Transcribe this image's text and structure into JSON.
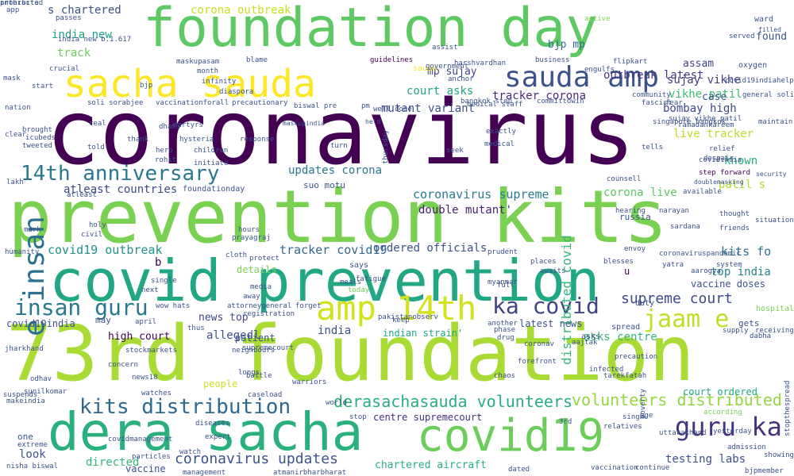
{
  "palette": [
    "#440154",
    "#3b528b",
    "#21918c",
    "#5ec962",
    "#addc30",
    "#fde725"
  ],
  "words": [
    {
      "text": "coronavirus",
      "c": "#440154"
    },
    {
      "text": "prevention kits",
      "c": "#7ad151"
    },
    {
      "text": "73rd foundation",
      "c": "#a8db34"
    },
    {
      "text": "foundation day",
      "c": "#5ec962"
    },
    {
      "text": "covid prevention",
      "c": "#22a785"
    },
    {
      "text": "dera sacha",
      "c": "#2ab07f"
    },
    {
      "text": "covid19",
      "c": "#6ccd5a"
    },
    {
      "text": "sacha sauda",
      "c": "#fde725"
    },
    {
      "text": "sauda amp",
      "c": "#3b528b"
    },
    {
      "text": "amp 14th",
      "c": "#d2e21b"
    },
    {
      "text": "e insan",
      "c": "#2c728e"
    },
    {
      "text": "insan guru",
      "c": "#2a788e"
    },
    {
      "text": "guru ka",
      "c": "#46327e"
    },
    {
      "text": "jaam e",
      "c": "#bddf26"
    },
    {
      "text": "ka covid",
      "c": "#414487"
    },
    {
      "text": "kits distribution",
      "c": "#31688e"
    },
    {
      "text": "14th anniversary",
      "c": "#2a788e"
    },
    {
      "text": "derasachasauda volunteers",
      "c": "#29af7f"
    },
    {
      "text": "volunteers distributed",
      "c": "#93d741"
    },
    {
      "text": "supreme court",
      "c": "#3e4a89"
    },
    {
      "text": "coronavirus updates",
      "c": "#3b528b"
    },
    {
      "text": "coronavirus supreme",
      "c": "#287c8e"
    },
    {
      "text": "tracker corona",
      "c": "#482878"
    },
    {
      "text": "outbreak latest",
      "c": "#443983"
    },
    {
      "text": "corona live",
      "c": "#5ec962"
    },
    {
      "text": "live tracker",
      "c": "#b5de2b"
    },
    {
      "text": "bombay high",
      "c": "#3f4788"
    },
    {
      "text": "sujay vikhe",
      "c": "#433e85"
    },
    {
      "text": "vikhe patil",
      "c": "#3cbb75"
    },
    {
      "text": "bjp mp",
      "c": "#2d708e"
    },
    {
      "text": "mp sujay",
      "c": "#404688"
    },
    {
      "text": "mutant variant",
      "c": "#3b528b"
    },
    {
      "text": "court asks",
      "c": "#20a386"
    },
    {
      "text": "kits fo",
      "c": "#2c728e"
    },
    {
      "text": "top india",
      "c": "#25858e"
    },
    {
      "text": "vaccine doses",
      "c": "#3b528b"
    },
    {
      "text": "covid19 outbreak",
      "c": "#21918c"
    },
    {
      "text": "tracker covid19",
      "c": "#31688e"
    },
    {
      "text": "ordered officials",
      "c": "#3b528b"
    },
    {
      "text": "updates corona",
      "c": "#2a788e"
    },
    {
      "text": "atleast countries",
      "c": "#3e4989"
    },
    {
      "text": "double mutant'",
      "c": "#481f70"
    },
    {
      "text": "distributed covid",
      "c": "#35b779"
    },
    {
      "text": "known",
      "c": "#29af7f"
    },
    {
      "text": "patil s",
      "c": "#addc30"
    },
    {
      "text": "corona outbreak",
      "c": "#c8e020"
    },
    {
      "text": "s chartered",
      "c": "#3b528b"
    },
    {
      "text": "india new",
      "c": "#1fa088"
    },
    {
      "text": "track",
      "c": "#6ccd5a"
    },
    {
      "text": "assam",
      "c": "#414487"
    },
    {
      "text": "found",
      "c": "#3b528b"
    },
    {
      "text": "case",
      "c": "#3b528b"
    },
    {
      "text": "high court",
      "c": "#440154"
    },
    {
      "text": "news top",
      "c": "#404688"
    },
    {
      "text": "indian strain'",
      "c": "#22a785"
    },
    {
      "text": "latest news",
      "c": "#3b528b"
    },
    {
      "text": "asks centre",
      "c": "#35b779"
    },
    {
      "text": "centre supremecourt",
      "c": "#472f7d"
    },
    {
      "text": "court ordered",
      "c": "#22a785"
    },
    {
      "text": "testing labs",
      "c": "#3b528b"
    },
    {
      "text": "directed",
      "c": "#35b779"
    },
    {
      "text": "chartered aircraft",
      "c": "#29af7f"
    },
    {
      "text": "look",
      "c": "#3b528b"
    },
    {
      "text": "allegedl",
      "c": "#3b528b"
    },
    {
      "text": "covid19india",
      "c": "#3b528b"
    },
    {
      "text": "details",
      "c": "#7ad151"
    },
    {
      "text": "patient",
      "c": "#3b528b"
    },
    {
      "text": "people",
      "c": "#cde11d"
    },
    {
      "text": "vaccine",
      "c": "#3b528b"
    },
    {
      "text": "india",
      "c": "#3b528b"
    },
    {
      "text": "guidelines",
      "c": "#440154"
    },
    {
      "text": "medical staff",
      "c": "#3b528b"
    },
    {
      "text": "hospital",
      "c": "#7ad151"
    },
    {
      "text": "russia",
      "c": "#3b528b"
    },
    {
      "text": "step forward",
      "c": "#440154"
    },
    {
      "text": "covidindia",
      "c": "#3b528b"
    },
    {
      "text": "duty",
      "c": "#3b528b"
    },
    {
      "text": "gets",
      "c": "#3b528b"
    },
    {
      "text": "spread",
      "c": "#3b528b"
    },
    {
      "text": "b",
      "c": "#440154"
    },
    {
      "text": "u",
      "c": "#440154"
    },
    {
      "text": "may",
      "c": "#3b528b"
    },
    {
      "text": "one",
      "c": "#3b528b"
    },
    {
      "text": "envoy",
      "c": "#3b528b"
    },
    {
      "text": "today",
      "c": "#7ad151"
    },
    {
      "text": "says",
      "c": "#3b528b"
    },
    {
      "text": "away",
      "c": "#3b528b"
    },
    {
      "text": "asks",
      "c": "#3b528b"
    },
    {
      "text": "suo motu",
      "c": "#3b528b"
    },
    {
      "text": "hearing",
      "c": "#3b528b"
    },
    {
      "text": "according",
      "c": "#7ad151"
    },
    {
      "text": "foundationday",
      "c": "#3b528b"
    },
    {
      "text": "nisha biswal",
      "c": "#3b528b"
    },
    {
      "text": "extreme",
      "c": "#3b528b"
    },
    {
      "text": "vaccination",
      "c": "#3b528b"
    },
    {
      "text": "active",
      "c": "#7ad151"
    },
    {
      "text": "ward",
      "c": "#3b528b"
    },
    {
      "text": "passes",
      "c": "#3b528b"
    },
    {
      "text": "sauda",
      "c": "#fde725"
    },
    {
      "text": "sujay vikhe patil",
      "c": "#3b528b"
    },
    {
      "text": "singapore bangkok",
      "c": "#3b528b"
    },
    {
      "text": "india new b.1.617",
      "c": "#3b528b"
    },
    {
      "text": "atleast",
      "c": "#3b528b"
    },
    {
      "text": "mask",
      "c": "#3b528b"
    },
    {
      "text": "start",
      "c": "#3b528b"
    },
    {
      "text": "app",
      "c": "#3b528b"
    },
    {
      "text": "clear",
      "c": "#3b528b"
    },
    {
      "text": "fatigue",
      "c": "#3b528b"
    },
    {
      "text": "supremecourt",
      "c": "#3b528b"
    },
    {
      "text": "next",
      "c": "#3b528b"
    },
    {
      "text": "bjp",
      "c": "#3b528b"
    },
    {
      "text": "pm",
      "c": "#3b528b"
    },
    {
      "text": "lakh",
      "c": "#3b528b"
    },
    {
      "text": "dhami",
      "c": "#3b528b"
    },
    {
      "text": "biswal pre",
      "c": "#3b528b"
    },
    {
      "text": "bangkok step",
      "c": "#3b528b"
    },
    {
      "text": "community",
      "c": "#3b528b"
    },
    {
      "text": "government",
      "c": "#3b528b"
    },
    {
      "text": "anchor",
      "c": "#3b528b"
    },
    {
      "text": "assist",
      "c": "#3b528b"
    },
    {
      "text": "held",
      "c": "#3b528b"
    },
    {
      "text": "well done",
      "c": "#3b528b"
    },
    {
      "text": "nation",
      "c": "#3b528b"
    },
    {
      "text": "fascist",
      "c": "#3b528b"
    },
    {
      "text": "fear",
      "c": "#3b528b"
    },
    {
      "text": "oxygen",
      "c": "#3b528b"
    },
    {
      "text": "filled",
      "c": "#3b528b"
    },
    {
      "text": "served",
      "c": "#3b528b"
    },
    {
      "text": "general soli",
      "c": "#3b528b"
    },
    {
      "text": "maintain",
      "c": "#3b528b"
    },
    {
      "text": "covid19indiahelp",
      "c": "#3b528b"
    },
    {
      "text": "harshvardhan",
      "c": "#3b528b"
    },
    {
      "text": "business",
      "c": "#3b528b"
    },
    {
      "text": "engulfs",
      "c": "#3b528b"
    },
    {
      "text": "flipkart",
      "c": "#3b528b"
    },
    {
      "text": "committowin",
      "c": "#3b528b"
    },
    {
      "text": "crucial",
      "c": "#3b528b"
    },
    {
      "text": "maskupasam",
      "c": "#3b528b"
    },
    {
      "text": "blame",
      "c": "#3b528b"
    },
    {
      "text": "month",
      "c": "#3b528b"
    },
    {
      "text": "infinity",
      "c": "#3b528b"
    },
    {
      "text": "diaspora",
      "c": "#3b528b"
    },
    {
      "text": "soli sorabjee",
      "c": "#3b528b"
    },
    {
      "text": "vaccinationforall",
      "c": "#3b528b"
    },
    {
      "text": "precautionary",
      "c": "#3b528b"
    },
    {
      "text": "brought",
      "c": "#3b528b"
    },
    {
      "text": "icubeds",
      "c": "#3b528b"
    },
    {
      "text": "tweeted",
      "c": "#3b528b"
    },
    {
      "text": "told",
      "c": "#3b528b"
    },
    {
      "text": "real",
      "c": "#3b528b"
    },
    {
      "text": "martyrs",
      "c": "#3b528b"
    },
    {
      "text": "hysteria",
      "c": "#3b528b"
    },
    {
      "text": "thank",
      "c": "#3b528b"
    },
    {
      "text": "children",
      "c": "#3b528b"
    },
    {
      "text": "initiate",
      "c": "#3b528b"
    },
    {
      "text": "hero",
      "c": "#3b528b"
    },
    {
      "text": "rohit",
      "c": "#3b528b"
    },
    {
      "text": "maskupindia",
      "c": "#3b528b"
    },
    {
      "text": "response",
      "c": "#3b528b"
    },
    {
      "text": "turn",
      "c": "#3b528b"
    },
    {
      "text": "thursday",
      "c": "#3b528b"
    },
    {
      "text": "seek",
      "c": "#3b528b"
    },
    {
      "text": "medical",
      "c": "#3b528b"
    },
    {
      "text": "exactly",
      "c": "#3b528b"
    },
    {
      "text": "counsell",
      "c": "#3b528b"
    },
    {
      "text": "security",
      "c": "#3b528b"
    },
    {
      "text": "doublemasking",
      "c": "#3b528b"
    },
    {
      "text": "despair",
      "c": "#3b528b"
    },
    {
      "text": "relief",
      "c": "#3b528b"
    },
    {
      "text": "ramadankareem",
      "c": "#3b528b"
    },
    {
      "text": "tells",
      "c": "#3b528b"
    },
    {
      "text": "thought",
      "c": "#3b528b"
    },
    {
      "text": "friends",
      "c": "#3b528b"
    },
    {
      "text": "situation",
      "c": "#3b528b"
    },
    {
      "text": "available",
      "c": "#3b528b"
    },
    {
      "text": "sardana",
      "c": "#3b528b"
    },
    {
      "text": "narayan",
      "c": "#3b528b"
    },
    {
      "text": "coronaviruspandemic",
      "c": "#3b528b"
    },
    {
      "text": "yatra",
      "c": "#3b528b"
    },
    {
      "text": "aarogya",
      "c": "#3b528b"
    },
    {
      "text": "system",
      "c": "#3b528b"
    },
    {
      "text": "hours",
      "c": "#3b528b"
    },
    {
      "text": "prayagraj",
      "c": "#3b528b"
    },
    {
      "text": "protect",
      "c": "#3b528b"
    },
    {
      "text": "cloth",
      "c": "#3b528b"
    },
    {
      "text": "media",
      "c": "#3b528b"
    },
    {
      "text": "meals",
      "c": "#3b528b"
    },
    {
      "text": "myanmar",
      "c": "#3b528b"
    },
    {
      "text": "full",
      "c": "#3b528b"
    },
    {
      "text": "prudent",
      "c": "#3b528b"
    },
    {
      "text": "places",
      "c": "#3b528b"
    },
    {
      "text": "awaits",
      "c": "#3b528b"
    },
    {
      "text": "blesses",
      "c": "#3b528b"
    },
    {
      "text": "humanity",
      "c": "#3b528b"
    },
    {
      "text": "holy",
      "c": "#3b528b"
    },
    {
      "text": "civil",
      "c": "#3b528b"
    },
    {
      "text": "mark",
      "c": "#3b528b"
    },
    {
      "text": "single",
      "c": "#3b528b"
    },
    {
      "text": "wow hats",
      "c": "#3b528b"
    },
    {
      "text": "attorneygeneral",
      "c": "#3b528b"
    },
    {
      "text": "registration",
      "c": "#3b528b"
    },
    {
      "text": "thus",
      "c": "#3b528b"
    },
    {
      "text": "neighbours",
      "c": "#3b528b"
    },
    {
      "text": "april",
      "c": "#3b528b"
    },
    {
      "text": "forget",
      "c": "#3b528b"
    },
    {
      "text": "pakistanobserv",
      "c": "#3b528b"
    },
    {
      "text": "keep",
      "c": "#3b528b"
    },
    {
      "text": "another",
      "c": "#3b528b"
    },
    {
      "text": "drug",
      "c": "#3b528b"
    },
    {
      "text": "phase",
      "c": "#3b528b"
    },
    {
      "text": "aajtak",
      "c": "#3b528b"
    },
    {
      "text": "coronav",
      "c": "#3b528b"
    },
    {
      "text": "precaution",
      "c": "#3b528b"
    },
    {
      "text": "infected",
      "c": "#3b528b"
    },
    {
      "text": "tarekfatah",
      "c": "#3b528b"
    },
    {
      "text": "poverty",
      "c": "#3b528b"
    },
    {
      "text": "forefront",
      "c": "#3b528b"
    },
    {
      "text": "chaos",
      "c": "#3b528b"
    },
    {
      "text": "odhav",
      "c": "#3b528b"
    },
    {
      "text": "sunilkomar",
      "c": "#3b528b"
    },
    {
      "text": "makeindia",
      "c": "#3b528b"
    },
    {
      "text": "caseload",
      "c": "#3b528b"
    },
    {
      "text": "battle",
      "c": "#3b528b"
    },
    {
      "text": "warriors",
      "c": "#3b528b"
    },
    {
      "text": "world",
      "c": "#3b528b"
    },
    {
      "text": "stop",
      "c": "#3b528b"
    },
    {
      "text": "3rd",
      "c": "#3b528b"
    },
    {
      "text": "singh",
      "c": "#3b528b"
    },
    {
      "text": "age",
      "c": "#3b528b"
    },
    {
      "text": "relatives",
      "c": "#3b528b"
    },
    {
      "text": "uttarakhand",
      "c": "#3b528b"
    },
    {
      "text": "yesterday",
      "c": "#3b528b"
    },
    {
      "text": "admission",
      "c": "#3b528b"
    },
    {
      "text": "dated",
      "c": "#3b528b"
    },
    {
      "text": "bjpmember",
      "c": "#3b528b"
    },
    {
      "text": "management",
      "c": "#3b528b"
    },
    {
      "text": "atmanirbharbharat",
      "c": "#3b528b"
    },
    {
      "text": "diseases",
      "c": "#3b528b"
    },
    {
      "text": "expert",
      "c": "#3b528b"
    },
    {
      "text": "watch",
      "c": "#3b528b"
    },
    {
      "text": "covidmanagement",
      "c": "#3b528b"
    },
    {
      "text": "particles",
      "c": "#3b528b"
    },
    {
      "text": "watches",
      "c": "#3b528b"
    },
    {
      "text": "longs",
      "c": "#3b528b"
    },
    {
      "text": "concern",
      "c": "#3b528b"
    },
    {
      "text": "stockmarkets",
      "c": "#3b528b"
    },
    {
      "text": "news18",
      "c": "#3b528b"
    },
    {
      "text": "jharkhand",
      "c": "#3b528b"
    },
    {
      "text": "suspends",
      "c": "#3b528b"
    },
    {
      "text": "continue",
      "c": "#3b528b"
    },
    {
      "text": "showing",
      "c": "#3b528b"
    },
    {
      "text": "receiving",
      "c": "#3b528b"
    },
    {
      "text": "dabha",
      "c": "#3b528b"
    },
    {
      "text": "supply",
      "c": "#3b528b"
    },
    {
      "text": "stopthespread",
      "c": "#3b528b"
    },
    {
      "text": "prohibited",
      "c": "#3b528b"
    },
    {
      "text": "interacts",
      "c": "#3b528b"
    }
  ]
}
